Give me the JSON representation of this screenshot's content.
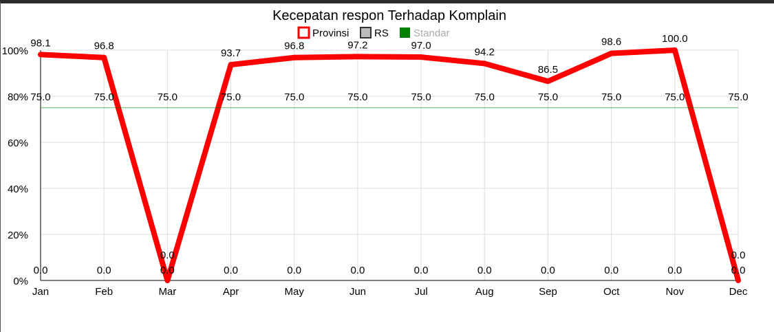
{
  "chart_data": {
    "type": "line",
    "title": "Kecepatan respon Terhadap Komplain",
    "categories": [
      "Jan",
      "Feb",
      "Mar",
      "Apr",
      "May",
      "Jun",
      "Jul",
      "Aug",
      "Sep",
      "Oct",
      "Nov",
      "Dec"
    ],
    "y_ticks": [
      "0%",
      "20%",
      "40%",
      "60%",
      "80%",
      "100%"
    ],
    "ylim": [
      0,
      100
    ],
    "grid": true,
    "legend_position": "top",
    "series": [
      {
        "name": "Provinsi",
        "color": "#ff0000",
        "values": [
          98.1,
          96.8,
          0,
          93.7,
          96.8,
          97.2,
          97.0,
          94.2,
          86.5,
          98.6,
          100.0,
          0
        ]
      },
      {
        "name": "RS",
        "color": "#999999",
        "values": [
          0,
          0,
          0,
          0,
          0,
          0,
          0,
          0,
          0,
          0,
          0,
          0
        ]
      },
      {
        "name": "Standar",
        "color": "#008000",
        "values": [
          75,
          75,
          75,
          75,
          75,
          75,
          75,
          75,
          75,
          75,
          75,
          75
        ]
      }
    ]
  }
}
